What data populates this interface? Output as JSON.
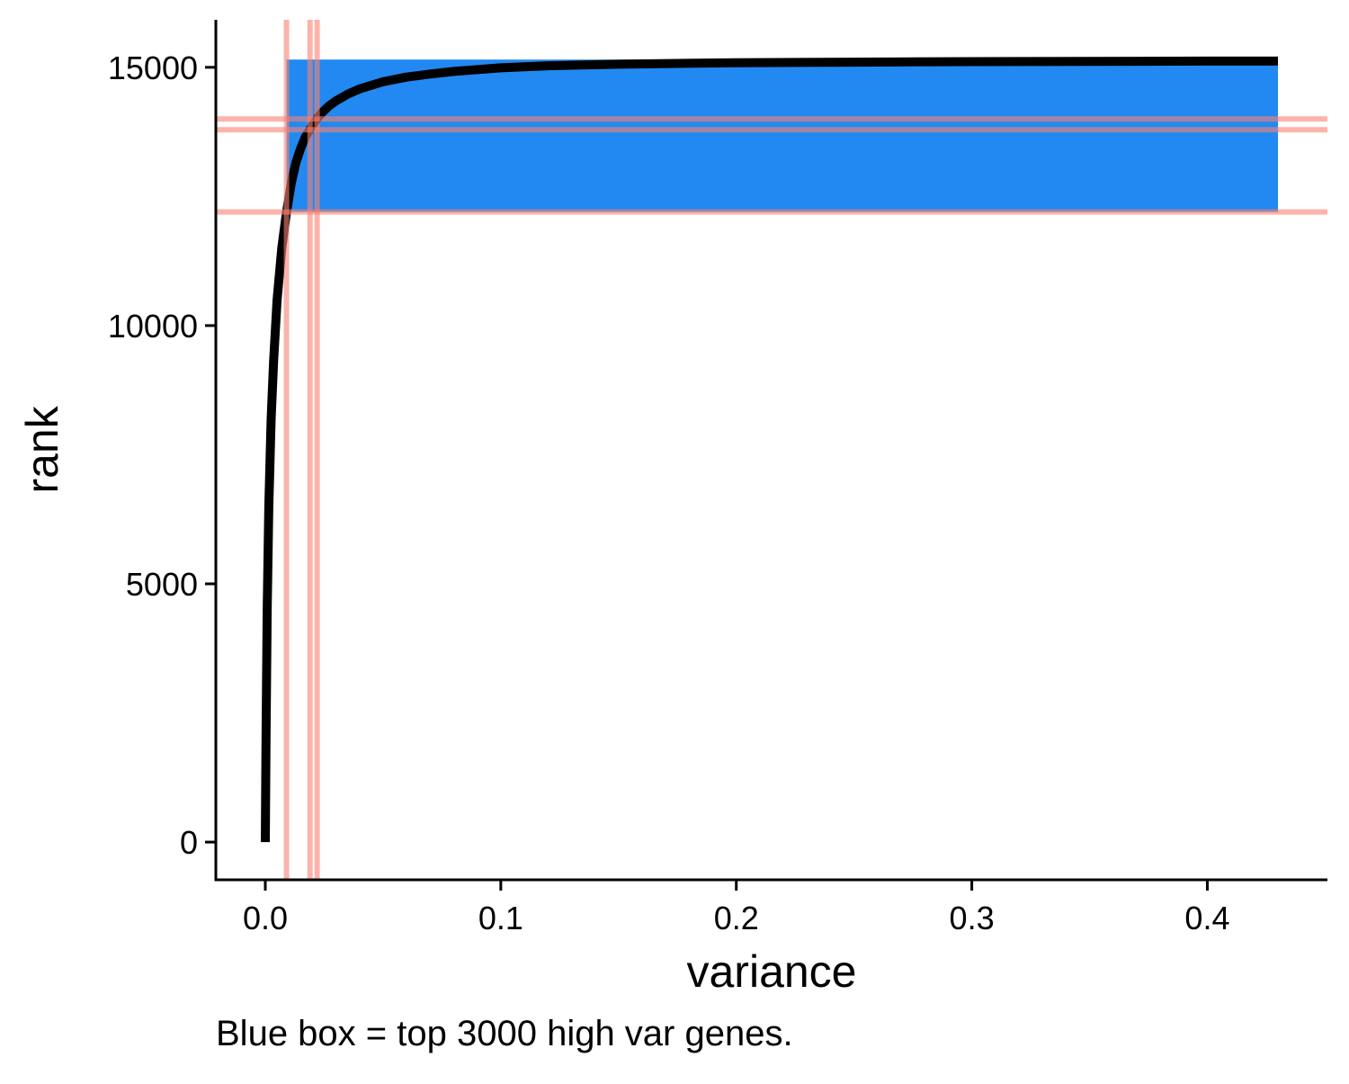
{
  "chart_data": {
    "type": "line",
    "title": "",
    "xlabel": "variance",
    "ylabel": "rank",
    "caption": "Blue box = top 3000 high var genes.",
    "xlim": [
      -0.021,
      0.451
    ],
    "ylim": [
      -730,
      15920
    ],
    "x_ticks": [
      0.0,
      0.1,
      0.2,
      0.3,
      0.4
    ],
    "x_tick_labels": [
      "0.0",
      "0.1",
      "0.2",
      "0.3",
      "0.4"
    ],
    "y_ticks": [
      0,
      5000,
      10000,
      15000
    ],
    "y_tick_labels": [
      "0",
      "5000",
      "10000",
      "15000"
    ],
    "grid": false,
    "colors": {
      "line": "#000000",
      "box": "#2189F1",
      "threshold": "#FA8072"
    },
    "highlight_box": {
      "x": [
        0.009,
        0.43
      ],
      "y": [
        12200,
        15150
      ]
    },
    "vertical_lines": [
      0.009,
      0.019,
      0.022
    ],
    "horizontal_lines": [
      12200,
      13790,
      14000
    ],
    "series": [
      {
        "x": [
          0.0,
          0.0003,
          0.0008,
          0.0015,
          0.0025,
          0.0035,
          0.005,
          0.007,
          0.009,
          0.011,
          0.013,
          0.015,
          0.017,
          0.019,
          0.021,
          0.024,
          0.027,
          0.03,
          0.035,
          0.04,
          0.05,
          0.06,
          0.07,
          0.08,
          0.1,
          0.12,
          0.15,
          0.2,
          0.25,
          0.3,
          0.35,
          0.4,
          0.43
        ],
        "y": [
          0,
          2000,
          4500,
          6500,
          8200,
          9300,
          10500,
          11500,
          12200,
          12750,
          13150,
          13430,
          13650,
          13800,
          13950,
          14120,
          14250,
          14350,
          14480,
          14580,
          14720,
          14810,
          14870,
          14920,
          14990,
          15030,
          15060,
          15090,
          15100,
          15110,
          15115,
          15120,
          15120
        ]
      }
    ]
  }
}
